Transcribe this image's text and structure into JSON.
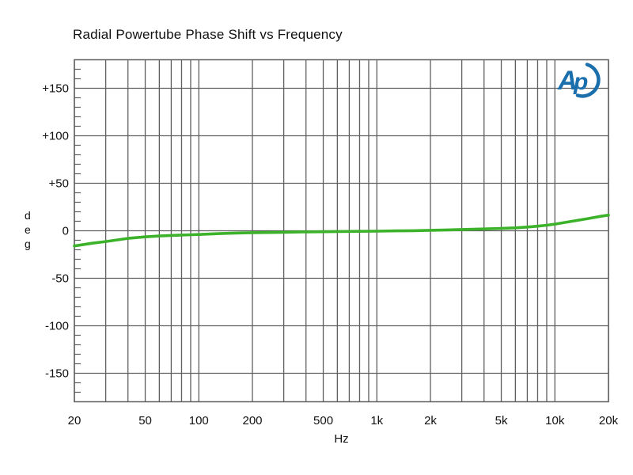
{
  "chart": {
    "title": "Radial Powertube Phase Shift vs Frequency",
    "xlabel": "Hz",
    "ylabel": "deg",
    "ylabel_chars": [
      "d",
      "e",
      "g"
    ]
  },
  "logo": {
    "name": "audio-precision",
    "letter_a": "A",
    "letter_p": "p",
    "color": "#1c6fad"
  },
  "colors": {
    "background": "#ffffff",
    "grid": "#5f5f5f",
    "curve": "#3cb22a",
    "text": "#111111"
  },
  "chart_data": {
    "type": "line",
    "title": "Radial Powertube Phase Shift vs Frequency",
    "xlabel": "Hz",
    "ylabel": "deg",
    "x_scale": "log",
    "x_range": [
      20,
      20000
    ],
    "y_range": [
      -180,
      180
    ],
    "grid": "on",
    "y_major_ticks": [
      {
        "value": 150,
        "label": "+150"
      },
      {
        "value": 100,
        "label": "+100"
      },
      {
        "value": 50,
        "label": "+50"
      },
      {
        "value": 0,
        "label": "0"
      },
      {
        "value": -50,
        "label": "-50"
      },
      {
        "value": -100,
        "label": "-100"
      },
      {
        "value": -150,
        "label": "-150"
      }
    ],
    "y_minor_step": 10,
    "x_ticks": [
      {
        "value": 20,
        "label": "20"
      },
      {
        "value": 50,
        "label": "50"
      },
      {
        "value": 100,
        "label": "100"
      },
      {
        "value": 200,
        "label": "200"
      },
      {
        "value": 500,
        "label": "500"
      },
      {
        "value": 1000,
        "label": "1k"
      },
      {
        "value": 2000,
        "label": "2k"
      },
      {
        "value": 5000,
        "label": "5k"
      },
      {
        "value": 10000,
        "label": "10k"
      },
      {
        "value": 20000,
        "label": "20k"
      }
    ],
    "x_gridlines": [
      20,
      30,
      40,
      50,
      60,
      70,
      80,
      90,
      100,
      200,
      300,
      400,
      500,
      600,
      700,
      800,
      900,
      1000,
      2000,
      3000,
      4000,
      5000,
      6000,
      7000,
      8000,
      9000,
      10000,
      20000
    ],
    "series": [
      {
        "name": "phase-shift",
        "color": "#3cb22a",
        "points": [
          [
            20,
            -16.0
          ],
          [
            25,
            -13.2
          ],
          [
            30,
            -11.3
          ],
          [
            40,
            -8.0
          ],
          [
            50,
            -6.4
          ],
          [
            60,
            -5.5
          ],
          [
            70,
            -4.9
          ],
          [
            80,
            -4.5
          ],
          [
            90,
            -4.2
          ],
          [
            100,
            -3.9
          ],
          [
            130,
            -3.0
          ],
          [
            160,
            -2.4
          ],
          [
            200,
            -2.0
          ],
          [
            250,
            -1.8
          ],
          [
            300,
            -1.6
          ],
          [
            400,
            -1.2
          ],
          [
            500,
            -1.0
          ],
          [
            700,
            -0.7
          ],
          [
            1000,
            -0.4
          ],
          [
            1300,
            -0.1
          ],
          [
            1600,
            0.1
          ],
          [
            2000,
            0.5
          ],
          [
            2500,
            0.9
          ],
          [
            3000,
            1.3
          ],
          [
            4000,
            1.9
          ],
          [
            5000,
            2.5
          ],
          [
            6000,
            3.1
          ],
          [
            7000,
            3.9
          ],
          [
            8000,
            4.8
          ],
          [
            9000,
            5.8
          ],
          [
            10000,
            7.0
          ],
          [
            12000,
            9.5
          ],
          [
            15000,
            12.5
          ],
          [
            18000,
            15.2
          ],
          [
            20000,
            16.5
          ]
        ]
      }
    ]
  }
}
